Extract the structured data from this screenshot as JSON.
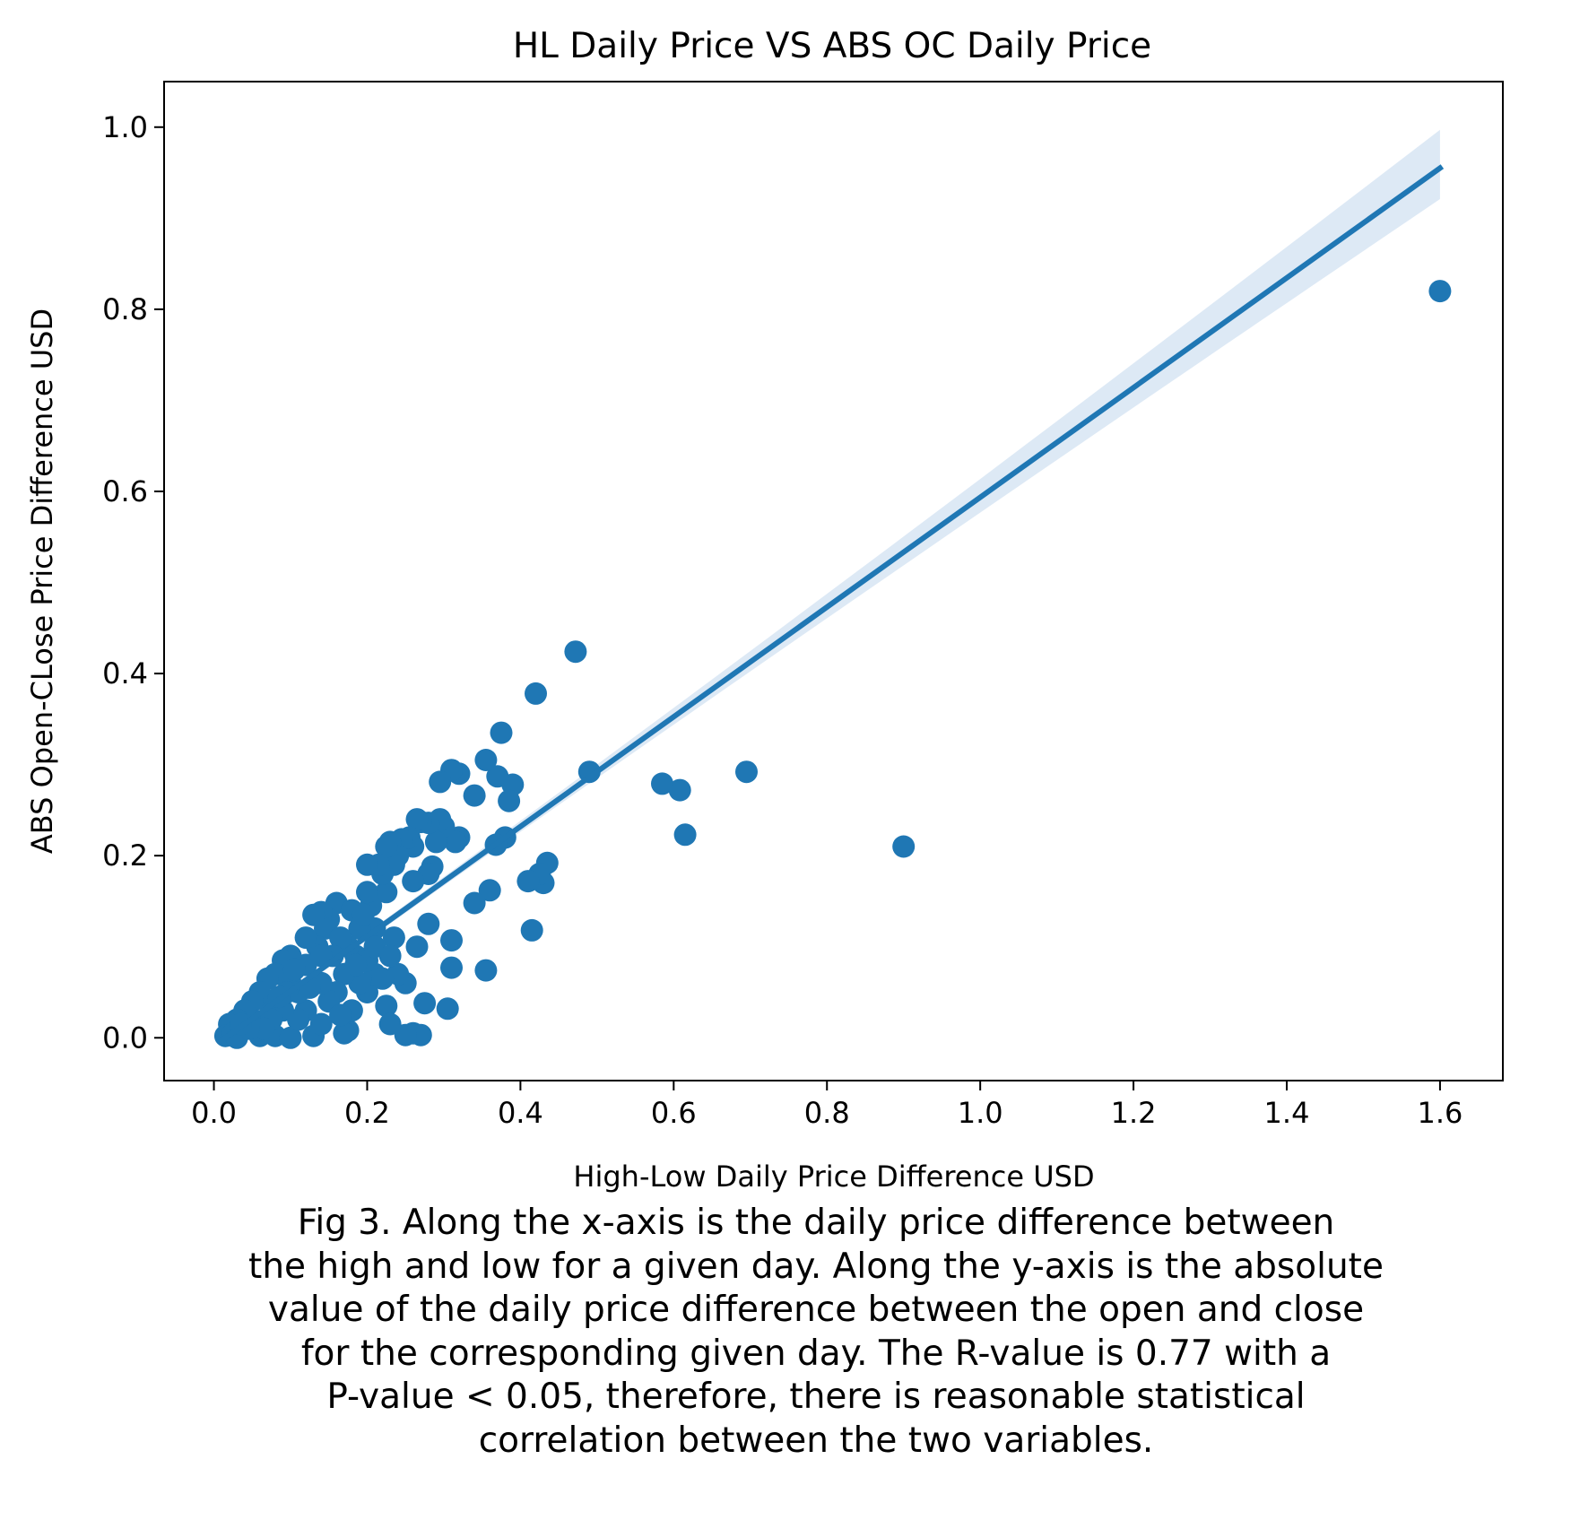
{
  "chart_data": {
    "type": "scatter",
    "title": "HL Daily Price VS ABS OC Daily Price",
    "xlabel": "High-Low Daily Price Difference USD",
    "ylabel": "ABS Open-CLose Price Difference USD",
    "xlim": [
      -0.065,
      1.682
    ],
    "ylim": [
      -0.047,
      1.05
    ],
    "xticks": [
      0.0,
      0.2,
      0.4,
      0.6,
      0.8,
      1.0,
      1.2,
      1.4,
      1.6
    ],
    "xtick_labels": [
      "0.0",
      "0.2",
      "0.4",
      "0.6",
      "0.8",
      "1.0",
      "1.2",
      "1.4",
      "1.6"
    ],
    "yticks": [
      0.0,
      0.2,
      0.4,
      0.6,
      0.8,
      1.0
    ],
    "ytick_labels": [
      "0.0",
      "0.2",
      "0.4",
      "0.6",
      "0.8",
      "1.0"
    ],
    "grid": false,
    "legend": "none",
    "colors": {
      "points": "#1f77b4",
      "line": "#1f77b4",
      "band": "#c6dbef"
    },
    "regression": {
      "x": [
        0.01,
        1.6
      ],
      "y": [
        -0.003,
        0.955
      ],
      "ci_upper_end": 0.997,
      "ci_lower_end": 0.921
    },
    "points": [
      [
        1.6,
        0.82
      ],
      [
        0.9,
        0.21
      ],
      [
        0.695,
        0.292
      ],
      [
        0.615,
        0.223
      ],
      [
        0.608,
        0.272
      ],
      [
        0.585,
        0.279
      ],
      [
        0.49,
        0.292
      ],
      [
        0.472,
        0.424
      ],
      [
        0.42,
        0.378
      ],
      [
        0.435,
        0.192
      ],
      [
        0.43,
        0.17
      ],
      [
        0.425,
        0.18
      ],
      [
        0.41,
        0.172
      ],
      [
        0.415,
        0.118
      ],
      [
        0.39,
        0.278
      ],
      [
        0.385,
        0.26
      ],
      [
        0.38,
        0.22
      ],
      [
        0.375,
        0.335
      ],
      [
        0.37,
        0.287
      ],
      [
        0.368,
        0.212
      ],
      [
        0.355,
        0.305
      ],
      [
        0.36,
        0.162
      ],
      [
        0.355,
        0.074
      ],
      [
        0.34,
        0.266
      ],
      [
        0.34,
        0.148
      ],
      [
        0.32,
        0.29
      ],
      [
        0.31,
        0.294
      ],
      [
        0.32,
        0.22
      ],
      [
        0.315,
        0.215
      ],
      [
        0.31,
        0.077
      ],
      [
        0.31,
        0.107
      ],
      [
        0.305,
        0.032
      ],
      [
        0.3,
        0.232
      ],
      [
        0.295,
        0.24
      ],
      [
        0.295,
        0.281
      ],
      [
        0.29,
        0.215
      ],
      [
        0.28,
        0.236
      ],
      [
        0.285,
        0.188
      ],
      [
        0.28,
        0.18
      ],
      [
        0.28,
        0.125
      ],
      [
        0.275,
        0.038
      ],
      [
        0.27,
        0.237
      ],
      [
        0.265,
        0.24
      ],
      [
        0.26,
        0.21
      ],
      [
        0.26,
        0.172
      ],
      [
        0.265,
        0.1
      ],
      [
        0.255,
        0.22
      ],
      [
        0.245,
        0.218
      ],
      [
        0.25,
        0.06
      ],
      [
        0.26,
        0.005
      ],
      [
        0.27,
        0.003
      ],
      [
        0.25,
        0.003
      ],
      [
        0.24,
        0.2
      ],
      [
        0.235,
        0.19
      ],
      [
        0.23,
        0.215
      ],
      [
        0.225,
        0.21
      ],
      [
        0.225,
        0.16
      ],
      [
        0.22,
        0.18
      ],
      [
        0.215,
        0.19
      ],
      [
        0.24,
        0.07
      ],
      [
        0.235,
        0.11
      ],
      [
        0.225,
        0.035
      ],
      [
        0.23,
        0.015
      ],
      [
        0.2,
        0.19
      ],
      [
        0.205,
        0.145
      ],
      [
        0.2,
        0.16
      ],
      [
        0.21,
        0.12
      ],
      [
        0.19,
        0.12
      ],
      [
        0.185,
        0.09
      ],
      [
        0.175,
        0.008
      ],
      [
        0.16,
        0.148
      ],
      [
        0.15,
        0.13
      ],
      [
        0.14,
        0.138
      ],
      [
        0.145,
        0.12
      ],
      [
        0.13,
        0.135
      ],
      [
        0.135,
        0.1
      ],
      [
        0.12,
        0.11
      ],
      [
        0.12,
        0.08
      ],
      [
        0.1,
        0.09
      ],
      [
        0.1,
        0.06
      ],
      [
        0.09,
        0.085
      ],
      [
        0.08,
        0.07
      ],
      [
        0.07,
        0.065
      ],
      [
        0.07,
        0.04
      ],
      [
        0.06,
        0.05
      ],
      [
        0.05,
        0.04
      ],
      [
        0.05,
        0.02
      ],
      [
        0.04,
        0.03
      ],
      [
        0.03,
        0.02
      ],
      [
        0.02,
        0.015
      ],
      [
        0.015,
        0.002
      ],
      [
        0.025,
        0.005
      ],
      [
        0.03,
        0.0
      ],
      [
        0.06,
        0.002
      ],
      [
        0.08,
        0.002
      ],
      [
        0.1,
        0.0
      ],
      [
        0.13,
        0.002
      ],
      [
        0.17,
        0.005
      ],
      [
        0.18,
        0.03
      ],
      [
        0.2,
        0.05
      ],
      [
        0.21,
        0.07
      ],
      [
        0.19,
        0.06
      ],
      [
        0.17,
        0.07
      ],
      [
        0.16,
        0.05
      ],
      [
        0.15,
        0.04
      ],
      [
        0.14,
        0.06
      ],
      [
        0.12,
        0.03
      ],
      [
        0.11,
        0.02
      ],
      [
        0.09,
        0.03
      ],
      [
        0.075,
        0.02
      ],
      [
        0.2,
        0.085
      ],
      [
        0.175,
        0.1
      ],
      [
        0.165,
        0.11
      ],
      [
        0.18,
        0.14
      ],
      [
        0.155,
        0.09
      ],
      [
        0.11,
        0.05
      ],
      [
        0.095,
        0.05
      ],
      [
        0.14,
        0.09
      ],
      [
        0.065,
        0.01
      ],
      [
        0.045,
        0.01
      ],
      [
        0.035,
        0.015
      ],
      [
        0.21,
        0.1
      ],
      [
        0.195,
        0.135
      ],
      [
        0.22,
        0.065
      ],
      [
        0.23,
        0.09
      ],
      [
        0.185,
        0.08
      ],
      [
        0.165,
        0.025
      ],
      [
        0.125,
        0.055
      ],
      [
        0.085,
        0.045
      ],
      [
        0.105,
        0.075
      ],
      [
        0.14,
        0.015
      ]
    ]
  },
  "caption": {
    "lines": [
      "Fig 3. Along the x-axis is the daily price difference between",
      "the high and low for a given day. Along the y-axis is the absolute",
      "value of the daily price difference between the open and close",
      "for the corresponding given day. The R-value is 0.77 with a",
      "P-value < 0.05, therefore, there is reasonable statistical",
      "correlation between the two variables."
    ]
  }
}
